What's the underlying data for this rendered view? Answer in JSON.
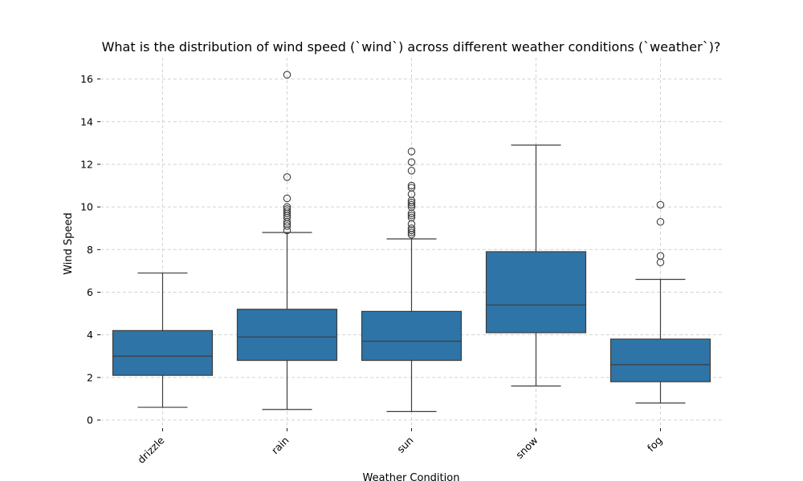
{
  "chart_data": {
    "type": "box",
    "title": "What is the distribution of wind speed (`wind`) across different weather conditions (`weather`)?",
    "xlabel": "Weather Condition",
    "ylabel": "Wind Speed",
    "ylim": [
      -0.3,
      17.0
    ],
    "yticks": [
      0,
      2,
      4,
      6,
      8,
      10,
      12,
      14,
      16
    ],
    "grid": true,
    "color": "#2e74a7",
    "categories": [
      "drizzle",
      "rain",
      "sun",
      "snow",
      "fog"
    ],
    "boxes": [
      {
        "name": "drizzle",
        "whislo": 0.6,
        "q1": 2.1,
        "med": 3.0,
        "q3": 4.2,
        "whishi": 6.9,
        "fliers": []
      },
      {
        "name": "rain",
        "whislo": 0.5,
        "q1": 2.8,
        "med": 3.9,
        "q3": 5.2,
        "whishi": 8.8,
        "fliers": [
          8.9,
          9.1,
          9.2,
          9.3,
          9.5,
          9.6,
          9.7,
          9.8,
          9.9,
          10.0,
          10.4,
          11.4,
          16.2
        ]
      },
      {
        "name": "sun",
        "whislo": 0.4,
        "q1": 2.8,
        "med": 3.7,
        "q3": 5.1,
        "whishi": 8.5,
        "fliers": [
          8.7,
          8.8,
          8.9,
          9.0,
          9.2,
          9.5,
          9.6,
          9.7,
          10.0,
          10.1,
          10.2,
          10.3,
          10.6,
          10.9,
          11.0,
          11.7,
          12.1,
          12.6
        ]
      },
      {
        "name": "snow",
        "whislo": 1.6,
        "q1": 4.1,
        "med": 5.4,
        "q3": 7.9,
        "whishi": 12.9,
        "fliers": []
      },
      {
        "name": "fog",
        "whislo": 0.8,
        "q1": 1.8,
        "med": 2.6,
        "q3": 3.8,
        "whishi": 6.6,
        "fliers": [
          7.4,
          7.7,
          9.3,
          10.1
        ]
      }
    ]
  }
}
